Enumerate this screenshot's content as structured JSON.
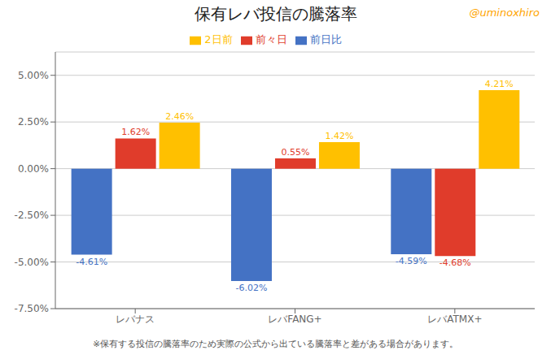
{
  "chart_data": {
    "type": "bar",
    "title": "保有レバ投信の騰落率",
    "categories": [
      "レバナス",
      "レバFANG+",
      "レバATMX+"
    ],
    "series": [
      {
        "name": "前日比",
        "color": "#4472C4",
        "values": [
          -4.61,
          -6.02,
          -4.59
        ],
        "value_labels": [
          "-4.61%",
          "-6.02%",
          "-4.59%"
        ]
      },
      {
        "name": "前々日",
        "color": "#E03C2B",
        "values": [
          1.62,
          0.55,
          -4.68
        ],
        "value_labels": [
          "1.62%",
          "0.55%",
          "-4.68%"
        ]
      },
      {
        "name": "2日前",
        "color": "#FFC000",
        "values": [
          2.46,
          1.42,
          4.21
        ],
        "value_labels": [
          "2.46%",
          "1.42%",
          "4.21%"
        ]
      }
    ],
    "ylim": [
      -7.5,
      6.25
    ],
    "yticks": [
      {
        "value": -7.5,
        "label": "-7.50%"
      },
      {
        "value": -5.0,
        "label": "-5.00%"
      },
      {
        "value": -2.5,
        "label": "-2.50%"
      },
      {
        "value": 0.0,
        "label": "0.00%"
      },
      {
        "value": 2.5,
        "label": "2.50%"
      },
      {
        "value": 5.0,
        "label": "5.00%"
      }
    ],
    "grid": true,
    "legend": "top",
    "data_labels": true,
    "annotations": [
      {
        "text": "@uminoxhiro",
        "color": "#FFA500"
      },
      {
        "text": "※保有する投信の騰落率のため実際の公式から出ている騰落率と差がある場合があります。"
      }
    ]
  }
}
